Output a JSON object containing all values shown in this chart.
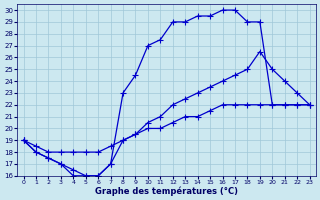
{
  "xlabel": "Graphe des températures (°C)",
  "xlim": [
    -0.5,
    23.5
  ],
  "ylim": [
    16,
    30.5
  ],
  "xticks": [
    0,
    1,
    2,
    3,
    4,
    5,
    6,
    7,
    8,
    9,
    10,
    11,
    12,
    13,
    14,
    15,
    16,
    17,
    18,
    19,
    20,
    21,
    22,
    23
  ],
  "yticks": [
    16,
    17,
    18,
    19,
    20,
    21,
    22,
    23,
    24,
    25,
    26,
    27,
    28,
    29,
    30
  ],
  "background_color": "#cce8f0",
  "grid_color": "#a0c8d8",
  "line_color": "#0000cc",
  "line1_x": [
    0,
    1,
    2,
    3,
    4,
    5,
    6,
    7,
    8,
    9,
    10,
    11,
    12,
    13,
    14,
    15,
    16,
    17,
    18,
    19,
    20,
    21,
    22,
    23
  ],
  "line1_y": [
    19,
    18,
    17.5,
    17,
    16,
    16,
    16,
    17,
    23,
    24.5,
    27,
    27.5,
    29,
    29,
    29.5,
    29.5,
    30,
    30,
    29,
    29,
    22,
    22,
    22,
    22
  ],
  "line2_x": [
    0,
    1,
    2,
    3,
    4,
    5,
    6,
    7,
    8,
    9,
    10,
    11,
    12,
    13,
    14,
    15,
    16,
    17,
    18,
    19,
    20,
    21,
    22,
    23
  ],
  "line2_y": [
    19,
    18,
    17.5,
    17,
    16.5,
    16,
    16,
    17,
    19,
    19.5,
    20.5,
    21,
    22,
    22.5,
    23,
    23.5,
    24,
    24.5,
    25,
    26.5,
    25,
    24,
    23,
    22
  ],
  "line3_x": [
    0,
    1,
    2,
    3,
    4,
    5,
    6,
    7,
    8,
    9,
    10,
    11,
    12,
    13,
    14,
    15,
    16,
    17,
    18,
    19,
    20,
    21,
    22,
    23
  ],
  "line3_y": [
    19,
    18.5,
    18,
    18,
    18,
    18,
    18,
    18.5,
    19,
    19.5,
    20,
    20,
    20.5,
    21,
    21,
    21.5,
    22,
    22,
    22,
    22,
    22,
    22,
    22,
    22
  ]
}
